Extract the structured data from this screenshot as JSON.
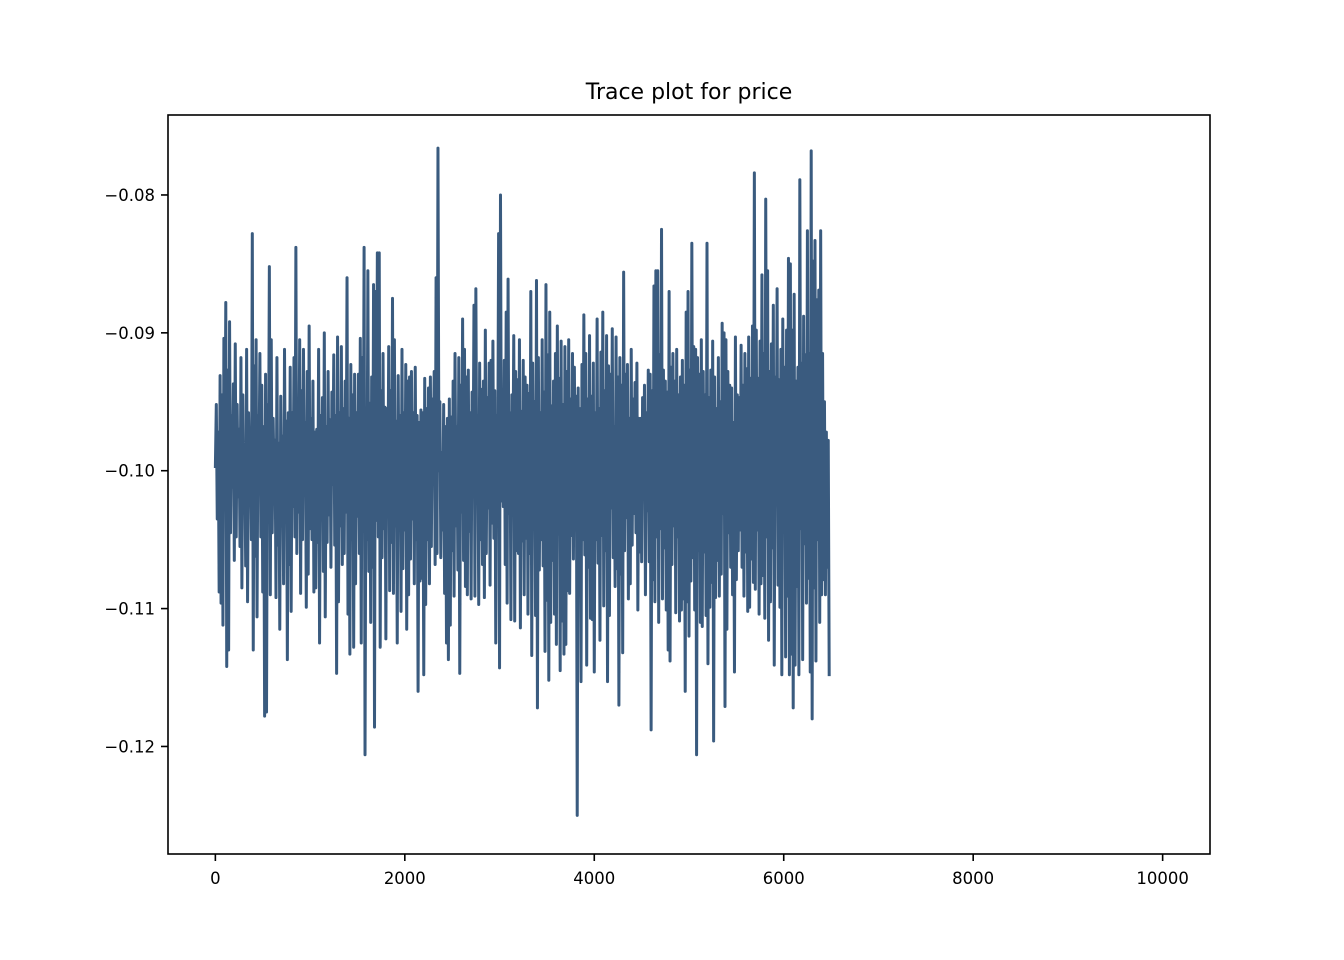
{
  "chart_data": {
    "type": "line",
    "title": "Trace plot for price",
    "xlabel": "",
    "ylabel": "",
    "xlim": [
      -500,
      10500
    ],
    "ylim": [
      -0.1278,
      -0.0742
    ],
    "x_ticks": [
      0,
      2000,
      4000,
      6000,
      8000,
      10000
    ],
    "x_tick_labels": [
      "0",
      "2000",
      "4000",
      "6000",
      "8000",
      "10000"
    ],
    "y_ticks": [
      -0.08,
      -0.09,
      -0.1,
      -0.11,
      -0.12
    ],
    "y_tick_labels": [
      "−0.08",
      "−0.09",
      "−0.10",
      "−0.11",
      "−0.12"
    ],
    "grid": false,
    "legend": "none",
    "series_color": "#3a5b7f",
    "series": [
      {
        "x_start": 0,
        "x_step": 10,
        "values": [
          -0.0998,
          -0.0952,
          -0.1035,
          -0.0972,
          -0.1088,
          -0.0931,
          -0.1096,
          -0.0945,
          -0.1112,
          -0.0904,
          -0.1025,
          -0.0878,
          -0.1142,
          -0.0927,
          -0.113,
          -0.0892,
          -0.1045,
          -0.096,
          -0.1012,
          -0.0937,
          -0.1065,
          -0.0908,
          -0.1048,
          -0.0952,
          -0.1019,
          -0.097,
          -0.1055,
          -0.0918,
          -0.1085,
          -0.0945,
          -0.103,
          -0.0985,
          -0.1069,
          -0.0912,
          -0.1095,
          -0.0958,
          -0.101,
          -0.0975,
          -0.105,
          -0.0828,
          -0.113,
          -0.0924,
          -0.1062,
          -0.0905,
          -0.1106,
          -0.096,
          -0.1005,
          -0.0915,
          -0.1048,
          -0.0938,
          -0.1088,
          -0.0968,
          -0.1178,
          -0.093,
          -0.1175,
          -0.0952,
          -0.102,
          -0.0852,
          -0.109,
          -0.0905,
          -0.1045,
          -0.0962,
          -0.101,
          -0.0978,
          -0.1092,
          -0.0918,
          -0.1054,
          -0.098,
          -0.1115,
          -0.0946,
          -0.104,
          -0.0975,
          -0.1082,
          -0.0912,
          -0.1035,
          -0.0964,
          -0.1137,
          -0.0958,
          -0.1068,
          -0.0925,
          -0.1102,
          -0.0958,
          -0.1026,
          -0.0918,
          -0.1048,
          -0.0838,
          -0.106,
          -0.0955,
          -0.103,
          -0.0905,
          -0.1089,
          -0.0942,
          -0.105,
          -0.0912,
          -0.101,
          -0.0965,
          -0.1099,
          -0.0928,
          -0.1075,
          -0.0895,
          -0.1042,
          -0.0962,
          -0.105,
          -0.0935,
          -0.1088,
          -0.0972,
          -0.1085,
          -0.097,
          -0.1052,
          -0.0912,
          -0.1125,
          -0.096,
          -0.1015,
          -0.0947,
          -0.1073,
          -0.09,
          -0.1106,
          -0.0968,
          -0.1052,
          -0.0928,
          -0.1032,
          -0.0963,
          -0.107,
          -0.0943,
          -0.101,
          -0.0916,
          -0.1054,
          -0.096,
          -0.1147,
          -0.0903,
          -0.1095,
          -0.0958,
          -0.104,
          -0.091,
          -0.1068,
          -0.0955,
          -0.106,
          -0.0935,
          -0.103,
          -0.086,
          -0.1104,
          -0.0962,
          -0.1133,
          -0.0923,
          -0.105,
          -0.0945,
          -0.1128,
          -0.093,
          -0.1082,
          -0.0958,
          -0.1033,
          -0.093,
          -0.106,
          -0.0904,
          -0.1125,
          -0.0918,
          -0.1038,
          -0.0838,
          -0.1206,
          -0.0968,
          -0.105,
          -0.0855,
          -0.1073,
          -0.0951,
          -0.111,
          -0.0932,
          -0.107,
          -0.0865,
          -0.1186,
          -0.087,
          -0.1036,
          -0.0842,
          -0.1048,
          -0.0842,
          -0.1128,
          -0.0942,
          -0.1063,
          -0.0915,
          -0.1042,
          -0.0954,
          -0.1122,
          -0.0955,
          -0.1031,
          -0.091,
          -0.1087,
          -0.0942,
          -0.1052,
          -0.0875,
          -0.1089,
          -0.0905,
          -0.104,
          -0.0964,
          -0.1125,
          -0.0931,
          -0.1039,
          -0.096,
          -0.1102,
          -0.0912,
          -0.1071,
          -0.0958,
          -0.1043,
          -0.0923,
          -0.1115,
          -0.0935,
          -0.109,
          -0.0932,
          -0.1064,
          -0.0928,
          -0.1035,
          -0.0958,
          -0.1082,
          -0.0925,
          -0.105,
          -0.096,
          -0.116,
          -0.0965,
          -0.108,
          -0.0956,
          -0.1078,
          -0.0958,
          -0.1148,
          -0.0933,
          -0.1097,
          -0.0955,
          -0.105,
          -0.094,
          -0.1082,
          -0.0932,
          -0.1055,
          -0.0948,
          -0.1,
          -0.0928,
          -0.1068,
          -0.086,
          -0.106,
          -0.0766,
          -0.1,
          -0.095,
          -0.1063,
          -0.0987,
          -0.1043,
          -0.0952,
          -0.1089,
          -0.0968,
          -0.1125,
          -0.0962,
          -0.1137,
          -0.0948,
          -0.1112,
          -0.0961,
          -0.1058,
          -0.0935,
          -0.1091,
          -0.0915,
          -0.104,
          -0.0968,
          -0.1072,
          -0.0918,
          -0.1147,
          -0.0938,
          -0.103,
          -0.089,
          -0.1065,
          -0.0912,
          -0.1084,
          -0.0932,
          -0.109,
          -0.0927,
          -0.1044,
          -0.0958,
          -0.1093,
          -0.0943,
          -0.1013,
          -0.088,
          -0.1091,
          -0.0868,
          -0.102,
          -0.096,
          -0.1097,
          -0.0922,
          -0.105,
          -0.0941,
          -0.1068,
          -0.0935,
          -0.1092,
          -0.0898,
          -0.106,
          -0.0947,
          -0.1027,
          -0.0922,
          -0.1083,
          -0.092,
          -0.1038,
          -0.0906,
          -0.1049,
          -0.0942,
          -0.1125,
          -0.096,
          -0.1021,
          -0.0828,
          -0.1143,
          -0.08,
          -0.1022,
          -0.0957,
          -0.1026,
          -0.092,
          -0.1068,
          -0.0885,
          -0.1096,
          -0.0861,
          -0.1031,
          -0.0958,
          -0.1108,
          -0.0945,
          -0.1012,
          -0.0902,
          -0.1109,
          -0.0928,
          -0.1058,
          -0.0934,
          -0.106,
          -0.0905,
          -0.1114,
          -0.0957,
          -0.1051,
          -0.092,
          -0.109,
          -0.0932,
          -0.1049,
          -0.0938,
          -0.1104,
          -0.0944,
          -0.106,
          -0.087,
          -0.1134,
          -0.0922,
          -0.1022,
          -0.095,
          -0.1105,
          -0.0862,
          -0.1172,
          -0.0918,
          -0.1072,
          -0.0958,
          -0.105,
          -0.0905,
          -0.1069,
          -0.0943,
          -0.1131,
          -0.0865,
          -0.1094,
          -0.0916,
          -0.1152,
          -0.0885,
          -0.111,
          -0.0953,
          -0.1065,
          -0.0935,
          -0.1104,
          -0.0915,
          -0.1126,
          -0.0895,
          -0.1046,
          -0.0933,
          -0.1145,
          -0.0906,
          -0.1109,
          -0.0952,
          -0.1133,
          -0.091,
          -0.1126,
          -0.0928,
          -0.1087,
          -0.0905,
          -0.1089,
          -0.0948,
          -0.1047,
          -0.0915,
          -0.1064,
          -0.0925,
          -0.1028,
          -0.0946,
          -0.125,
          -0.094,
          -0.1085,
          -0.0955,
          -0.1153,
          -0.0923,
          -0.105,
          -0.0887,
          -0.1061,
          -0.0915,
          -0.1141,
          -0.0948,
          -0.107,
          -0.0902,
          -0.1107,
          -0.0946,
          -0.1108,
          -0.0922,
          -0.1146,
          -0.0958,
          -0.105,
          -0.089,
          -0.1067,
          -0.0955,
          -0.1123,
          -0.0914,
          -0.1047,
          -0.0885,
          -0.1098,
          -0.0942,
          -0.1058,
          -0.0902,
          -0.1153,
          -0.0924,
          -0.1105,
          -0.093,
          -0.1027,
          -0.0897,
          -0.1063,
          -0.0968,
          -0.1084,
          -0.0903,
          -0.1071,
          -0.0932,
          -0.117,
          -0.0918,
          -0.1075,
          -0.0938,
          -0.1132,
          -0.0856,
          -0.1058,
          -0.093,
          -0.1034,
          -0.0923,
          -0.1093,
          -0.0962,
          -0.1082,
          -0.0912,
          -0.1054,
          -0.0948,
          -0.1031,
          -0.0936,
          -0.1045,
          -0.0922,
          -0.1101,
          -0.0962,
          -0.1059,
          -0.0962,
          -0.1066,
          -0.0947,
          -0.1018,
          -0.0938,
          -0.109,
          -0.0958,
          -0.1029,
          -0.0927,
          -0.1066,
          -0.093,
          -0.1188,
          -0.0942,
          -0.1079,
          -0.0866,
          -0.1095,
          -0.0855,
          -0.1048,
          -0.0855,
          -0.111,
          -0.0916,
          -0.1042,
          -0.0825,
          -0.1093,
          -0.0927,
          -0.1056,
          -0.0935,
          -0.1101,
          -0.0943,
          -0.113,
          -0.087,
          -0.1138,
          -0.0925,
          -0.1068,
          -0.0915,
          -0.104,
          -0.0935,
          -0.1103,
          -0.0912,
          -0.1048,
          -0.0945,
          -0.1109,
          -0.0932,
          -0.1101,
          -0.092,
          -0.1093,
          -0.0938,
          -0.116,
          -0.0885,
          -0.1095,
          -0.087,
          -0.112,
          -0.0927,
          -0.108,
          -0.0835,
          -0.1063,
          -0.091,
          -0.1101,
          -0.0912,
          -0.1206,
          -0.0918,
          -0.1058,
          -0.093,
          -0.111,
          -0.0905,
          -0.1113,
          -0.0928,
          -0.1059,
          -0.0945,
          -0.1105,
          -0.0835,
          -0.114,
          -0.0947,
          -0.1099,
          -0.0927,
          -0.1081,
          -0.0906,
          -0.1196,
          -0.0932,
          -0.1092,
          -0.0955,
          -0.1065,
          -0.0918,
          -0.1091,
          -0.095,
          -0.1075,
          -0.0893,
          -0.1031,
          -0.09,
          -0.1171,
          -0.0905,
          -0.1115,
          -0.0928,
          -0.1045,
          -0.0938,
          -0.107,
          -0.094,
          -0.109,
          -0.0965,
          -0.1146,
          -0.0903,
          -0.1079,
          -0.0945,
          -0.1058,
          -0.0947,
          -0.1043,
          -0.0909,
          -0.107,
          -0.0938,
          -0.1091,
          -0.0915,
          -0.1059,
          -0.0926,
          -0.1102,
          -0.0903,
          -0.1099,
          -0.0933,
          -0.1064,
          -0.0895,
          -0.1081,
          -0.0784,
          -0.1086,
          -0.0898,
          -0.1043,
          -0.0933,
          -0.1104,
          -0.0906,
          -0.1082,
          -0.0858,
          -0.1076,
          -0.0915,
          -0.1107,
          -0.0803,
          -0.1048,
          -0.0855,
          -0.1123,
          -0.0928,
          -0.1095,
          -0.0908,
          -0.1056,
          -0.088,
          -0.1141,
          -0.0932,
          -0.1016,
          -0.0868,
          -0.1083,
          -0.0934,
          -0.1099,
          -0.0912,
          -0.1148,
          -0.089,
          -0.1037,
          -0.0925,
          -0.1135,
          -0.0898,
          -0.1091,
          -0.0846,
          -0.1148,
          -0.085,
          -0.1133,
          -0.0898,
          -0.1172,
          -0.0872,
          -0.1141,
          -0.0935,
          -0.1084,
          -0.0925,
          -0.1148,
          -0.0789,
          -0.1042,
          -0.0922,
          -0.1137,
          -0.0888,
          -0.1053,
          -0.0916,
          -0.1096,
          -0.0826,
          -0.1078,
          -0.0915,
          -0.1146,
          -0.0768,
          -0.118,
          -0.0848,
          -0.1085,
          -0.0833,
          -0.1138,
          -0.0876,
          -0.105,
          -0.0869,
          -0.111,
          -0.0826,
          -0.109,
          -0.0915,
          -0.1079,
          -0.095,
          -0.109,
          -0.0972,
          -0.107,
          -0.0978,
          -0.1149
        ]
      }
    ]
  }
}
